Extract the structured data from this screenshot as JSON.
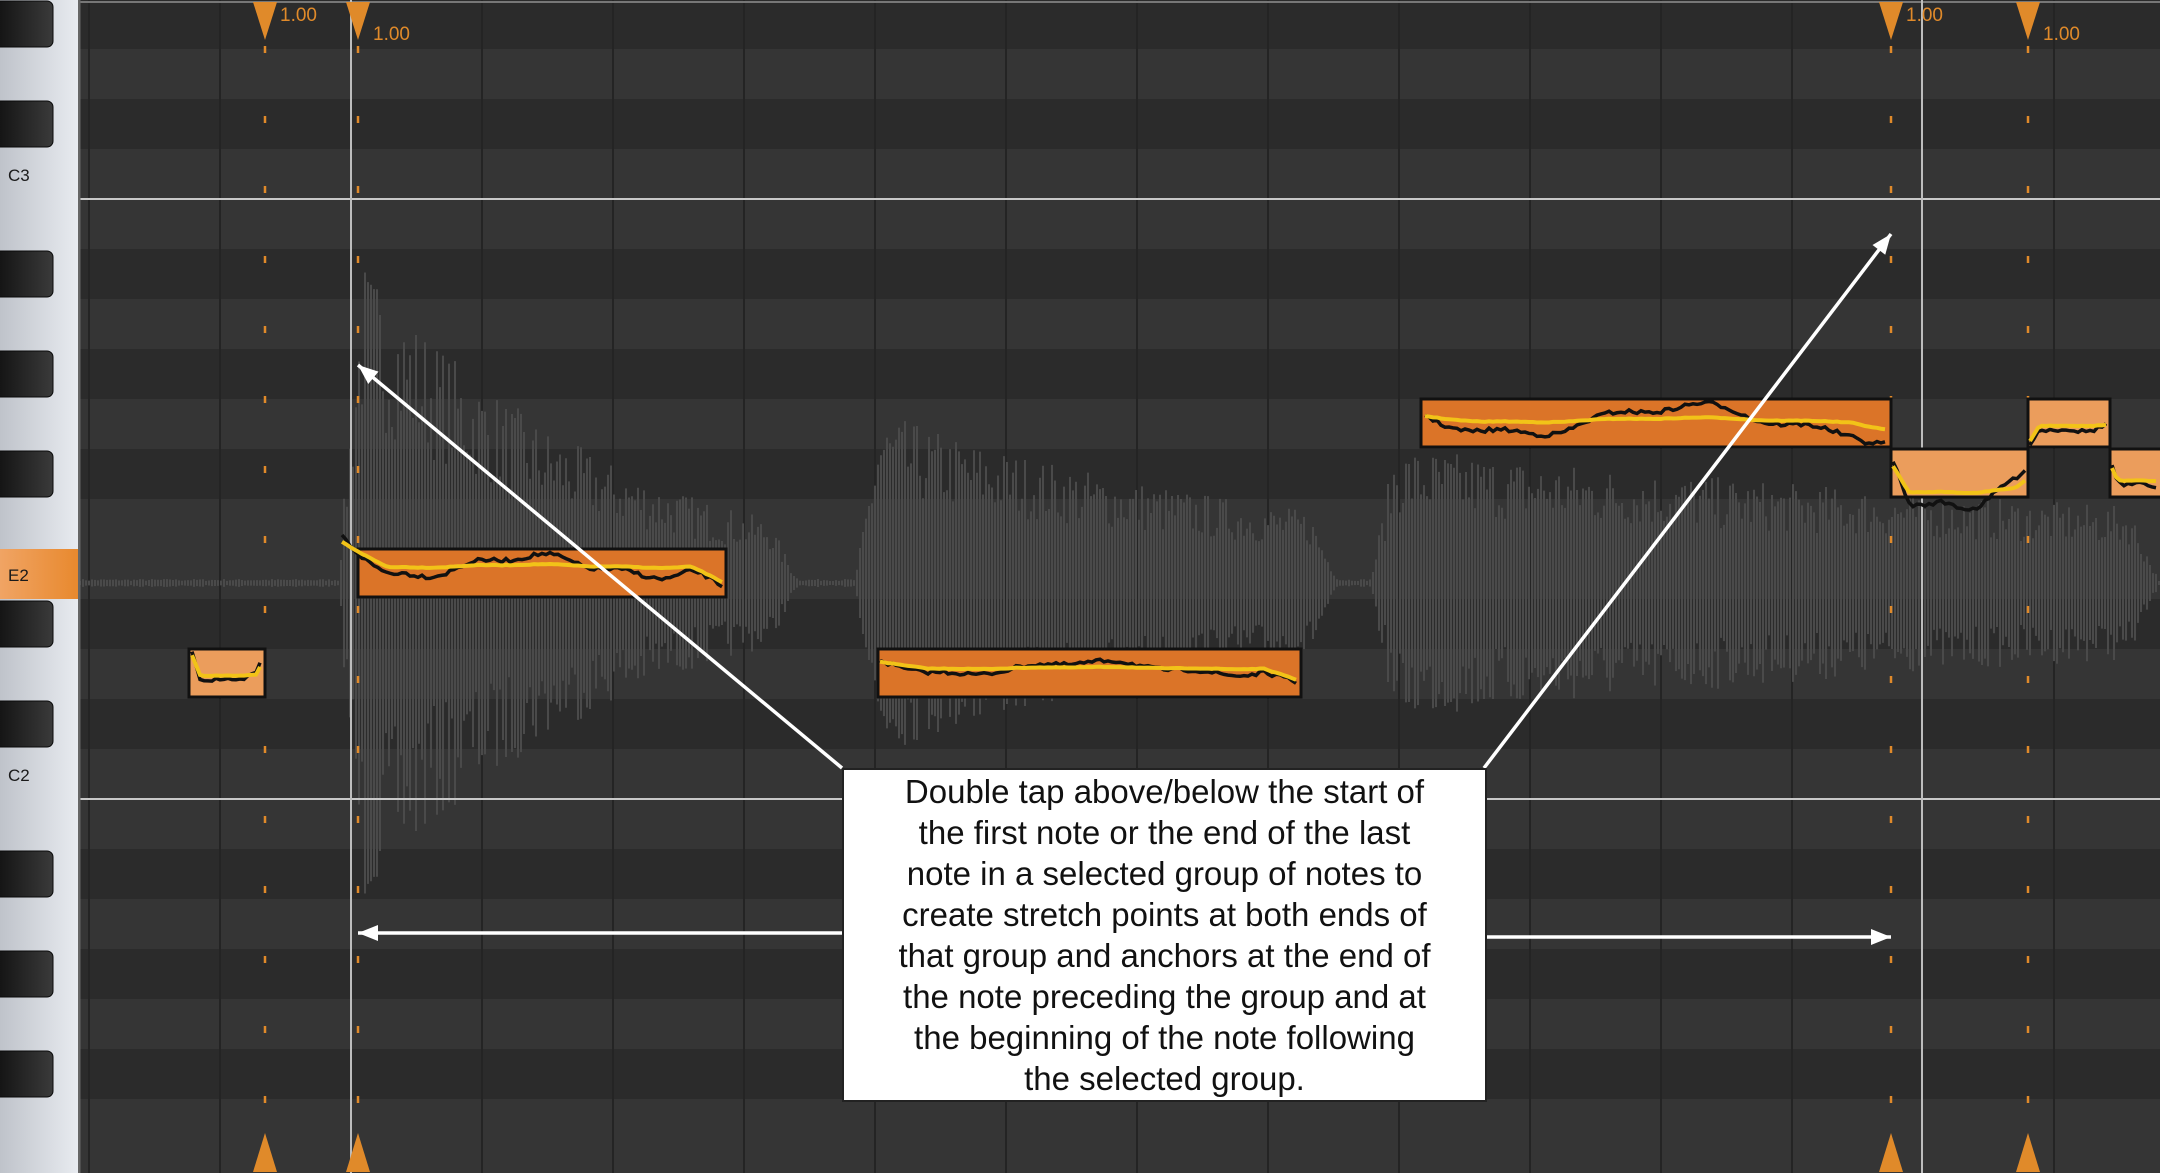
{
  "keyboard": {
    "labels": [
      {
        "row": 3,
        "text": "C3"
      },
      {
        "row": 11,
        "text": "E2"
      },
      {
        "row": 15,
        "text": "C2"
      }
    ],
    "highlighted_note": "E2",
    "highlight_color": "#e8892e"
  },
  "stretch_markers": [
    {
      "label": "1.00"
    },
    {
      "label": "1.00"
    },
    {
      "label": "1.00"
    },
    {
      "label": "1.00"
    }
  ],
  "notes": [
    {
      "pitch": "D2",
      "selected": false
    },
    {
      "pitch": "E2",
      "selected": true
    },
    {
      "pitch": "D2",
      "selected": true
    },
    {
      "pitch": "G2",
      "selected": true
    },
    {
      "pitch": "F#2",
      "selected": false
    },
    {
      "pitch": "G2",
      "selected": false
    },
    {
      "pitch": "F#2",
      "selected": false
    }
  ],
  "colors": {
    "note_selected": "#db7428",
    "note_unselected": "#eb9d5c",
    "marker": "#e08a2a",
    "pitch_curve": "#111111",
    "pitch_center": "#f2c318",
    "grid_light": "#353535",
    "grid_dark": "#2b2b2b"
  },
  "callout": {
    "lines": [
      "Double tap above/below the start of",
      "the first note or the end of the last",
      "note in a selected group of notes to",
      "create stretch points at both ends of",
      "that group and anchors at the end of",
      "the note preceding the group and at",
      "the beginning of the note following",
      "the selected group."
    ]
  }
}
